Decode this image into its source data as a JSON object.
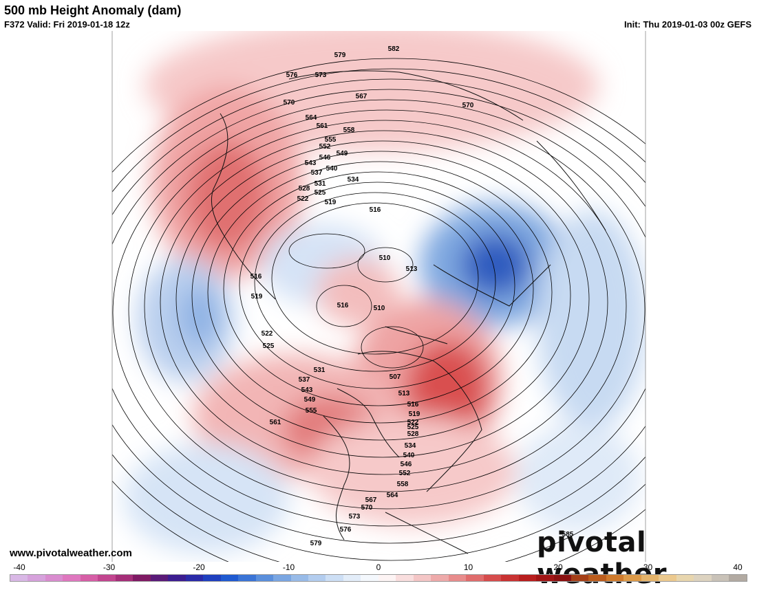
{
  "header": {
    "title": "500 mb Height Anomaly (dam)",
    "valid": "F372 Valid: Fri 2019-01-18 12z",
    "init": "Init: Thu 2019-01-03 00z GEFS"
  },
  "footer": {
    "site": "www.pivotalweather.com",
    "brand": "pivotal weather"
  },
  "colorbar": {
    "labels": [
      "-40",
      "-30",
      "-20",
      "-10",
      "0",
      "10",
      "20",
      "30",
      "40"
    ],
    "colors": [
      "#d9b8e6",
      "#d6a2dc",
      "#d98ccf",
      "#df77bf",
      "#d65ea6",
      "#c2458f",
      "#a52e78",
      "#7f1a64",
      "#5a1a78",
      "#3c1d90",
      "#2a2aa8",
      "#1f40bf",
      "#1f5ad1",
      "#3a74d6",
      "#5a8fdc",
      "#7aa6e2",
      "#98bbe8",
      "#b3cdef",
      "#cddff5",
      "#e3edf9",
      "#f4f8fd",
      "#fdf4f4",
      "#f9dede",
      "#f4c6c6",
      "#eeaaaa",
      "#e88c8c",
      "#e06c6c",
      "#d64c4c",
      "#c93232",
      "#b81e1e",
      "#a01414",
      "#8a1010",
      "#a43e16",
      "#bb5c1c",
      "#cf7a2c",
      "#dd9a48",
      "#e6b46a",
      "#ecc98e",
      "#e8d6ae",
      "#ddd3c0",
      "#c9c2b8",
      "#b2aaa2"
    ]
  },
  "contour_labels": [
    "582",
    "579",
    "576",
    "573",
    "567",
    "570",
    "570",
    "564",
    "561",
    "558",
    "555",
    "552",
    "549",
    "546",
    "543",
    "540",
    "537",
    "534",
    "531",
    "528",
    "525",
    "522",
    "519",
    "516",
    "510",
    "513",
    "516",
    "510",
    "516",
    "519",
    "522",
    "525",
    "531",
    "537",
    "543",
    "549",
    "555",
    "561",
    "507",
    "513",
    "516",
    "519",
    "522",
    "525",
    "528",
    "534",
    "540",
    "546",
    "552",
    "558",
    "564",
    "567",
    "570",
    "573",
    "576",
    "579",
    "585"
  ]
}
